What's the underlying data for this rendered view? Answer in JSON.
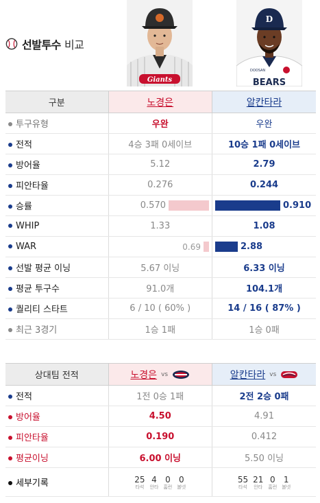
{
  "title": {
    "main": "선발투수",
    "sub": "비교"
  },
  "players": {
    "left": {
      "name": "노경은"
    },
    "right": {
      "name": "알칸타라"
    }
  },
  "colors": {
    "lotte_red": "#c8102e",
    "doosan_navy": "#1a3c8c",
    "bar_pink": "#f4c9cd"
  },
  "compare": {
    "header": "구분",
    "rows": [
      {
        "label": "투구유형",
        "left": "우완",
        "right": "우완"
      },
      {
        "label": "전적",
        "left": "4승 3패 0세이브",
        "right": "10승 1패 0세이브"
      },
      {
        "label": "방어율",
        "left": "5.12",
        "right": "2.79"
      },
      {
        "label": "피안타율",
        "left": "0.276",
        "right": "0.244"
      },
      {
        "label": "승률",
        "left": "0.570",
        "right": "0.910",
        "left_fraction": 0.57,
        "right_fraction": 0.91
      },
      {
        "label": "WHIP",
        "left": "1.33",
        "right": "1.08"
      },
      {
        "label": "WAR",
        "left": "0.69",
        "right": "2.88",
        "left_value": 0.69,
        "right_value": 2.88
      },
      {
        "label": "선발 평균 이닝",
        "left": "5.67 이닝",
        "right": "6.33 이닝"
      },
      {
        "label": "평균 투구수",
        "left": "91.0개",
        "right": "104.1개"
      },
      {
        "label": "퀄리티 스타트",
        "left": "6 / 10 ( 60% )",
        "right": "14 / 16 ( 87% )"
      },
      {
        "label": "최근 3경기",
        "left": "1승 1패",
        "right": "1승 0패"
      }
    ]
  },
  "opponent": {
    "header": "상대팀 전적",
    "vs": "vs",
    "rows": [
      {
        "label": "전적",
        "left": "1전 0승 1패",
        "right": "2전 2승 0패"
      },
      {
        "label": "방어율",
        "left": "4.50",
        "right": "4.91"
      },
      {
        "label": "피안타율",
        "left": "0.190",
        "right": "0.412"
      },
      {
        "label": "평균이닝",
        "left": "6.00 이닝",
        "right": "5.50 이닝"
      }
    ],
    "detail": {
      "label": "세부기록",
      "units": [
        "타석",
        "안타",
        "홈런",
        "볼넷"
      ],
      "left": [
        "25",
        "4",
        "0",
        "0"
      ],
      "right": [
        "55",
        "21",
        "0",
        "1"
      ]
    }
  }
}
